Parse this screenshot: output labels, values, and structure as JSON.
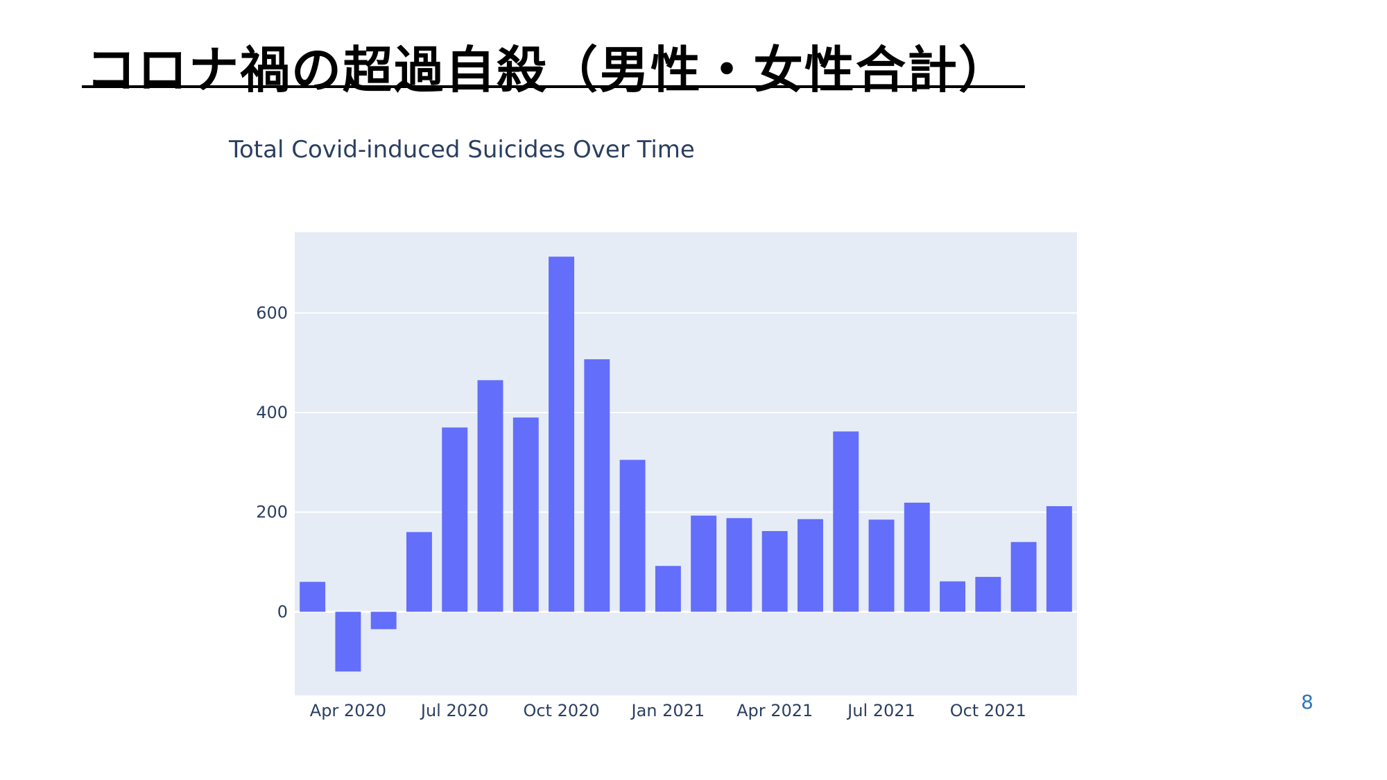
{
  "slide": {
    "title": "コロナ禍の超過自殺（男性・女性合計）",
    "page_number": "8"
  },
  "colors": {
    "plot_bg": "#e5ecf6",
    "bar": "#636efa",
    "grid": "#ffffff",
    "text": "#2a3f5f"
  },
  "chart_data": {
    "type": "bar",
    "title": "Total Covid-induced Suicides Over Time",
    "xlabel": "",
    "ylabel": "",
    "x": [
      "2020-03",
      "2020-04",
      "2020-05",
      "2020-06",
      "2020-07",
      "2020-08",
      "2020-09",
      "2020-10",
      "2020-11",
      "2020-12",
      "2021-01",
      "2021-02",
      "2021-03",
      "2021-04",
      "2021-05",
      "2021-06",
      "2021-07",
      "2021-08",
      "2021-09",
      "2021-10",
      "2021-11",
      "2021-12"
    ],
    "values": [
      60,
      -120,
      -35,
      160,
      370,
      465,
      390,
      713,
      507,
      305,
      92,
      193,
      188,
      162,
      186,
      362,
      185,
      219,
      61,
      70,
      140,
      212
    ],
    "ylim": [
      -168,
      762
    ],
    "yticks": [
      0,
      200,
      400,
      600
    ],
    "xticks": [
      {
        "at": "2020-04",
        "label": "Apr 2020"
      },
      {
        "at": "2020-07",
        "label": "Jul 2020"
      },
      {
        "at": "2020-10",
        "label": "Oct 2020"
      },
      {
        "at": "2021-01",
        "label": "Jan 2021"
      },
      {
        "at": "2021-04",
        "label": "Apr 2021"
      },
      {
        "at": "2021-07",
        "label": "Jul 2021"
      },
      {
        "at": "2021-10",
        "label": "Oct 2021"
      }
    ],
    "grid": true,
    "legend": "none"
  }
}
